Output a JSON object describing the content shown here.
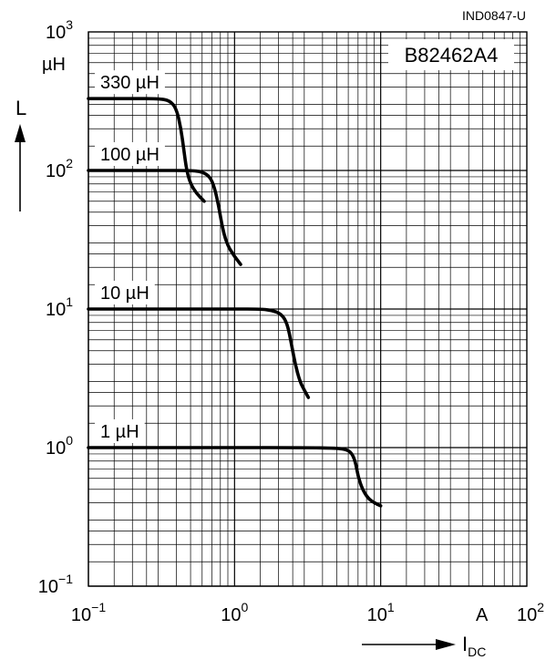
{
  "chart_data": {
    "type": "line",
    "figure_id": "IND0847-U",
    "part_number": "B82462A4",
    "y_axis": {
      "label": "L",
      "unit": "µH",
      "scale": "log",
      "range": [
        0.1,
        1000
      ]
    },
    "x_axis": {
      "label": "I",
      "label_subscript": "DC",
      "unit": "A",
      "scale": "log",
      "range": [
        0.1,
        100
      ]
    },
    "x_ticks": [
      {
        "base": "10",
        "exp": "−1",
        "value": 0.1
      },
      {
        "base": "10",
        "exp": "0",
        "value": 1
      },
      {
        "base": "10",
        "exp": "1",
        "value": 10
      },
      {
        "base": "10",
        "exp": "2",
        "value": 100
      }
    ],
    "y_ticks": [
      {
        "base": "10",
        "exp": "3",
        "value": 1000
      },
      {
        "base": "10",
        "exp": "2",
        "value": 100
      },
      {
        "base": "10",
        "exp": "1",
        "value": 10
      },
      {
        "base": "10",
        "exp": "0",
        "value": 1
      },
      {
        "base": "10",
        "exp": "−1",
        "value": 0.1
      }
    ],
    "grid": true,
    "series": [
      {
        "name": "330 µH",
        "points": [
          [
            0.1,
            330
          ],
          [
            0.2,
            330
          ],
          [
            0.3,
            330
          ],
          [
            0.36,
            320
          ],
          [
            0.4,
            280
          ],
          [
            0.43,
            200
          ],
          [
            0.45,
            140
          ],
          [
            0.47,
            100
          ],
          [
            0.5,
            80
          ],
          [
            0.55,
            68
          ],
          [
            0.62,
            60
          ]
        ]
      },
      {
        "name": "100 µH",
        "points": [
          [
            0.1,
            100
          ],
          [
            0.3,
            100
          ],
          [
            0.5,
            100
          ],
          [
            0.6,
            98
          ],
          [
            0.68,
            90
          ],
          [
            0.73,
            75
          ],
          [
            0.78,
            55
          ],
          [
            0.82,
            40
          ],
          [
            0.88,
            30
          ],
          [
            0.97,
            25
          ],
          [
            1.1,
            21
          ]
        ]
      },
      {
        "name": "10 µH",
        "points": [
          [
            0.1,
            10
          ],
          [
            0.5,
            10
          ],
          [
            1.0,
            10
          ],
          [
            1.5,
            10
          ],
          [
            1.8,
            9.8
          ],
          [
            2.1,
            9.2
          ],
          [
            2.3,
            7.8
          ],
          [
            2.45,
            5.6
          ],
          [
            2.6,
            4.0
          ],
          [
            2.8,
            3.0
          ],
          [
            3.0,
            2.6
          ],
          [
            3.2,
            2.3
          ]
        ]
      },
      {
        "name": "1 µH",
        "points": [
          [
            0.1,
            1
          ],
          [
            1,
            1
          ],
          [
            3,
            1
          ],
          [
            5,
            0.99
          ],
          [
            5.8,
            0.97
          ],
          [
            6.3,
            0.92
          ],
          [
            6.7,
            0.8
          ],
          [
            7.0,
            0.62
          ],
          [
            7.5,
            0.5
          ],
          [
            8.2,
            0.43
          ],
          [
            9.0,
            0.4
          ],
          [
            10,
            0.38
          ]
        ]
      }
    ]
  }
}
